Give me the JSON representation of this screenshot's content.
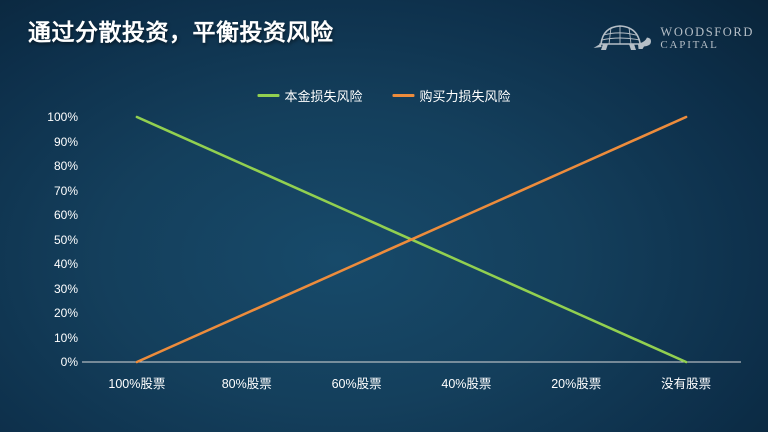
{
  "slide": {
    "title": "通过分散投资，平衡投资风险"
  },
  "logo": {
    "icon": "turtle-icon",
    "line1": "WOODSFORD",
    "line2": "CAPITAL",
    "color": "#b6bfc7"
  },
  "chart_data": {
    "type": "line",
    "title": "",
    "categories": [
      "100%股票",
      "80%股票",
      "60%股票",
      "40%股票",
      "20%股票",
      "没有股票"
    ],
    "series": [
      {
        "name": "本金损失风险",
        "color": "#92d050",
        "values": [
          100,
          80,
          60,
          40,
          20,
          0
        ]
      },
      {
        "name": "购买力损失风险",
        "color": "#ed8c3c",
        "values": [
          0,
          20,
          40,
          60,
          80,
          100
        ]
      }
    ],
    "yticks": [
      "100%",
      "90%",
      "80%",
      "70%",
      "60%",
      "50%",
      "40%",
      "30%",
      "20%",
      "10%",
      "0%"
    ],
    "ylim": [
      0,
      100
    ],
    "grid": false,
    "legend_position": "top",
    "axis_color": "#d9d9d9",
    "text_color": "#ffffff"
  }
}
